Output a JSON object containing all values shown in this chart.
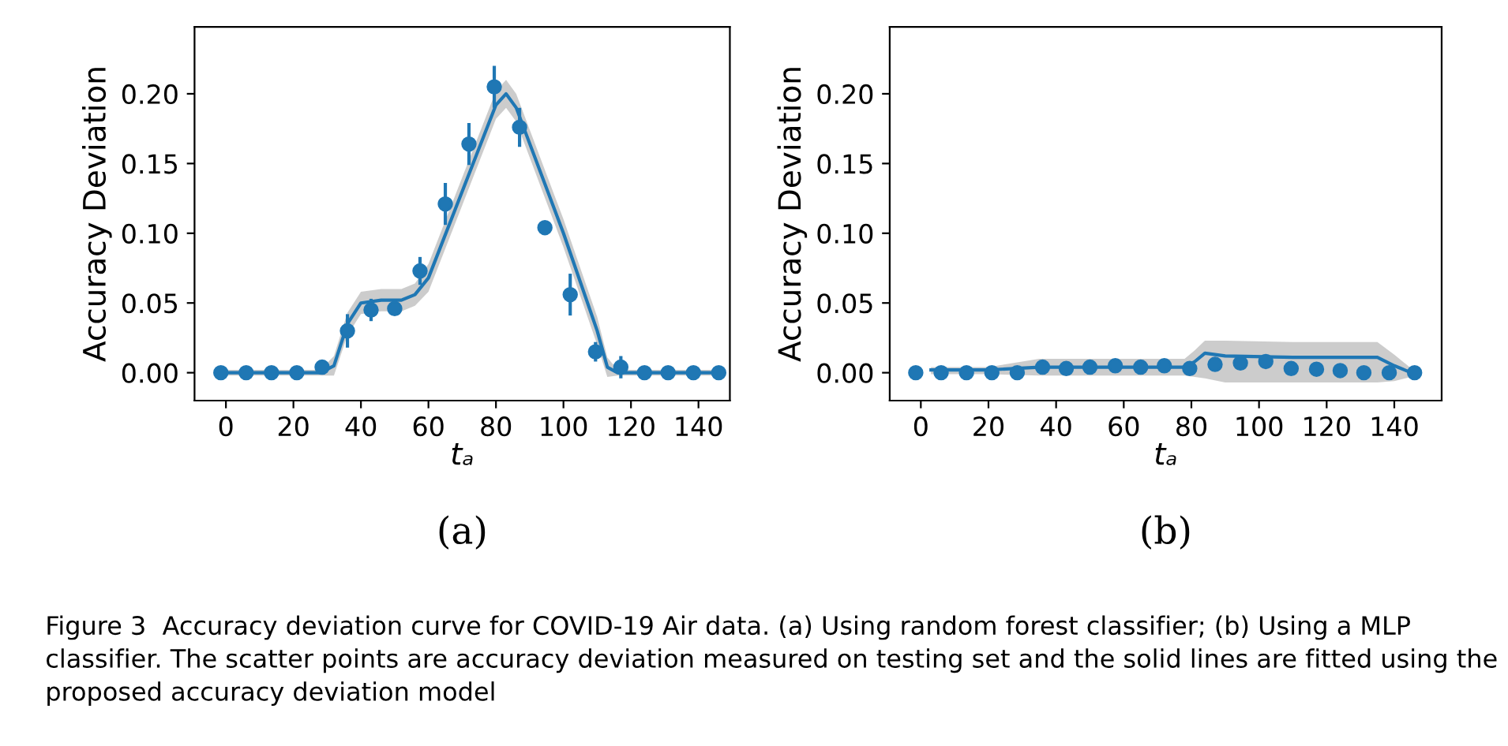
{
  "chart_data": [
    {
      "type": "scatter",
      "xlabel": "tₐ",
      "ylabel": "Accuracy Deviation",
      "xlim": [
        -9.3,
        149.3
      ],
      "ylim": [
        -0.02,
        0.248
      ],
      "xticks": [
        0,
        20,
        40,
        60,
        80,
        100,
        120,
        140
      ],
      "yticks": [
        {
          "value": 0,
          "label": "0.00"
        },
        {
          "value": 0.05,
          "label": "0.05"
        },
        {
          "value": 0.1,
          "label": "0.10"
        },
        {
          "value": 0.15,
          "label": "0.15"
        },
        {
          "value": 0.2,
          "label": "0.20"
        }
      ],
      "grid": false,
      "annotations": [
        "(a)",
        "Figure 3  Accuracy deviation curve for COVID-19 Air data. (a) Using random forest classifier; (b) Using a MLP classifier. The scatter points are accuracy deviation measured on testing set and the solid lines are fitted using the proposed accuracy deviation model"
      ],
      "series": [
        {
          "marker": "circle",
          "color": "#1f77b4",
          "x": [
            -1.5,
            6,
            13.5,
            21,
            28.5,
            36,
            43,
            50,
            57.5,
            65,
            72,
            79.5,
            87,
            94.5,
            102,
            109.5,
            117,
            124,
            131,
            138.5,
            146
          ],
          "values": [
            0,
            0,
            0,
            0,
            0.004,
            0.03,
            0.045,
            0.046,
            0.073,
            0.121,
            0.164,
            0.205,
            0.176,
            0.104,
            0.056,
            0.015,
            0.004,
            0,
            0,
            0,
            0
          ],
          "errors": [
            null,
            null,
            null,
            null,
            0.004,
            0.012,
            0.008,
            0.003,
            0.01,
            0.015,
            0.015,
            0.015,
            0.014,
            0.004,
            0.015,
            0.007,
            0.008,
            null,
            null,
            null,
            null
          ]
        },
        {
          "type": "line",
          "color": "#1f77b4",
          "x": [
            -2,
            28,
            32,
            36,
            40,
            46,
            52,
            56,
            60,
            70,
            80,
            83,
            86,
            100,
            110,
            113,
            116,
            146
          ],
          "values": [
            0,
            0,
            0.005,
            0.035,
            0.05,
            0.052,
            0.052,
            0.056,
            0.068,
            0.13,
            0.192,
            0.2,
            0.19,
            0.1,
            0.03,
            0.004,
            0,
            0
          ],
          "lower": [
            -0.002,
            -0.002,
            -0.002,
            0.027,
            0.042,
            0.044,
            0.044,
            0.048,
            0.058,
            0.12,
            0.182,
            0.19,
            0.18,
            0.09,
            0.02,
            -0.003,
            -0.002,
            -0.002
          ],
          "upper": [
            0.002,
            0.002,
            0.012,
            0.043,
            0.058,
            0.06,
            0.06,
            0.064,
            0.078,
            0.14,
            0.202,
            0.21,
            0.2,
            0.11,
            0.04,
            0.011,
            0.002,
            0.002
          ]
        }
      ]
    },
    {
      "type": "scatter",
      "xlabel": "tₐ",
      "ylabel": "Accuracy Deviation",
      "xlim": [
        -9.2,
        154
      ],
      "ylim": [
        -0.02,
        0.248
      ],
      "xticks": [
        0,
        20,
        40,
        60,
        80,
        100,
        120,
        140
      ],
      "yticks": [
        {
          "value": 0,
          "label": "0.00"
        },
        {
          "value": 0.05,
          "label": "0.05"
        },
        {
          "value": 0.1,
          "label": "0.10"
        },
        {
          "value": 0.15,
          "label": "0.15"
        },
        {
          "value": 0.2,
          "label": "0.20"
        }
      ],
      "grid": false,
      "annotations": [
        "(b)"
      ],
      "series": [
        {
          "marker": "circle",
          "color": "#1f77b4",
          "x": [
            -1.5,
            6,
            13.5,
            21,
            28.5,
            36,
            43,
            50,
            57.5,
            65,
            72,
            79.5,
            87,
            94.5,
            102,
            109.5,
            117,
            124,
            131,
            138.5,
            146
          ],
          "values": [
            0,
            0,
            0,
            0,
            0,
            0.004,
            0.003,
            0.004,
            0.005,
            0.004,
            0.005,
            0.003,
            0.006,
            0.007,
            0.008,
            0.003,
            0.0025,
            0.0015,
            0,
            0,
            0
          ],
          "errors": [
            null,
            null,
            null,
            null,
            null,
            0.003,
            null,
            null,
            null,
            null,
            0.004,
            null,
            0.005,
            null,
            null,
            null,
            null,
            null,
            null,
            null,
            null
          ]
        },
        {
          "type": "line",
          "color": "#1f77b4",
          "x": [
            3,
            20,
            35,
            60,
            78,
            81,
            84,
            90,
            110,
            135,
            140,
            145
          ],
          "values": [
            0.002,
            0.002,
            0.004,
            0.004,
            0.004,
            0.008,
            0.014,
            0.012,
            0.011,
            0.011,
            0.005,
            0
          ],
          "lower": [
            -0.001,
            -0.001,
            -0.002,
            -0.002,
            -0.002,
            -0.003,
            -0.004,
            -0.007,
            -0.007,
            -0.007,
            -0.006,
            -0.003
          ],
          "upper": [
            0.004,
            0.004,
            0.01,
            0.01,
            0.01,
            0.016,
            0.023,
            0.023,
            0.022,
            0.022,
            0.013,
            0.003
          ]
        }
      ]
    }
  ]
}
